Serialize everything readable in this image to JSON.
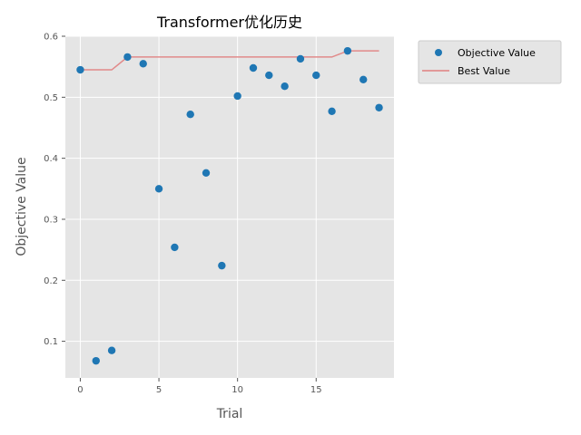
{
  "chart_data": {
    "type": "scatter",
    "title": "Transformer优化历史",
    "xlabel": "Trial",
    "ylabel": "Objective Value",
    "xlim": [
      -0.95,
      19.95
    ],
    "ylim": [
      0.04,
      0.6
    ],
    "xticks": [
      0,
      5,
      10,
      15
    ],
    "yticks": [
      0.1,
      0.2,
      0.3,
      0.4,
      0.5,
      0.6
    ],
    "grid": true,
    "legend_position": "outside-top-right",
    "series": [
      {
        "name": "Objective Value",
        "kind": "scatter",
        "color": "#1f77b4",
        "x": [
          0,
          1,
          2,
          3,
          4,
          5,
          6,
          7,
          8,
          9,
          10,
          11,
          12,
          13,
          14,
          15,
          16,
          17,
          18,
          19
        ],
        "y": [
          0.545,
          0.068,
          0.085,
          0.566,
          0.555,
          0.35,
          0.254,
          0.472,
          0.376,
          0.224,
          0.502,
          0.548,
          0.536,
          0.518,
          0.563,
          0.536,
          0.477,
          0.576,
          0.529,
          0.483
        ]
      },
      {
        "name": "Best Value",
        "kind": "line",
        "color": "#e08080",
        "x": [
          0,
          1,
          2,
          3,
          4,
          5,
          6,
          7,
          8,
          9,
          10,
          11,
          12,
          13,
          14,
          15,
          16,
          17,
          18,
          19
        ],
        "y": [
          0.545,
          0.545,
          0.545,
          0.566,
          0.566,
          0.566,
          0.566,
          0.566,
          0.566,
          0.566,
          0.566,
          0.566,
          0.566,
          0.566,
          0.566,
          0.566,
          0.566,
          0.576,
          0.576,
          0.576
        ]
      }
    ]
  }
}
